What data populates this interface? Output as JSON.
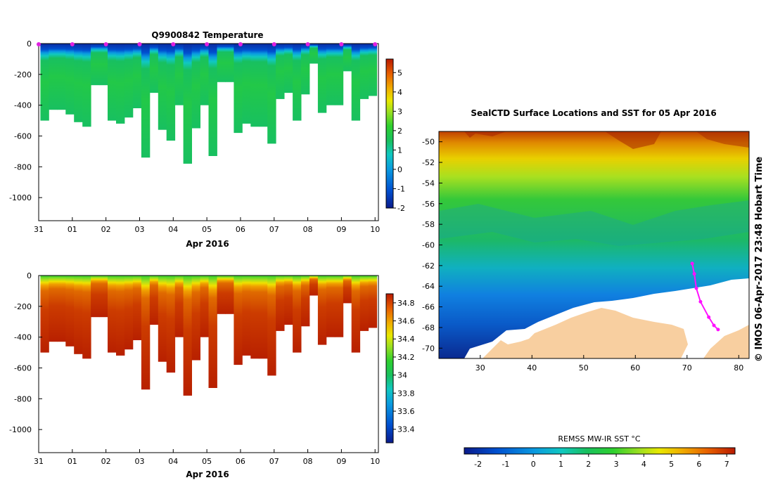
{
  "chart_data": [
    {
      "id": "temperature_section",
      "type": "heatmap",
      "title": "Q9900842  Temperature",
      "xlabel": "Apr 2016",
      "ylabel": "",
      "x_tick_labels": [
        "31",
        "01",
        "02",
        "03",
        "04",
        "05",
        "06",
        "07",
        "08",
        "09",
        "10"
      ],
      "x_ticks_days": [
        0,
        1,
        2,
        3,
        4,
        5,
        6,
        7,
        8,
        9,
        10
      ],
      "xlim_days": [
        0,
        10.1
      ],
      "y_ticks": [
        0,
        -200,
        -400,
        -600,
        -800,
        -1000
      ],
      "ylim": [
        -1150,
        0
      ],
      "profile_days": [
        0.05,
        0.3,
        0.55,
        0.8,
        1.05,
        1.3,
        1.55,
        1.8,
        2.05,
        2.3,
        2.55,
        2.8,
        3.05,
        3.3,
        3.55,
        3.8,
        4.05,
        4.3,
        4.55,
        4.8,
        5.05,
        5.3,
        5.55,
        5.8,
        6.05,
        6.3,
        6.55,
        6.8,
        7.05,
        7.3,
        7.55,
        7.8,
        8.05,
        8.3,
        8.55,
        8.8,
        9.05,
        9.3,
        9.55,
        9.8
      ],
      "profile_max_depth": [
        500,
        430,
        430,
        460,
        510,
        540,
        270,
        270,
        500,
        520,
        480,
        420,
        740,
        320,
        560,
        630,
        400,
        780,
        550,
        400,
        730,
        250,
        250,
        580,
        520,
        540,
        540,
        650,
        360,
        320,
        500,
        330,
        130,
        450,
        400,
        400,
        180,
        500,
        360,
        340
      ],
      "surface_markers_days": [
        0,
        1,
        2,
        3,
        4,
        5,
        6,
        7,
        8,
        9,
        10
      ],
      "colorbar": {
        "ticks": [
          5,
          4,
          3,
          2,
          1,
          0,
          -1,
          -2
        ],
        "range": [
          -2,
          5.7
        ],
        "colors": [
          "#0a1a8a",
          "#0050d0",
          "#0a9ae0",
          "#10c8c0",
          "#18c060",
          "#2ed02e",
          "#a0e020",
          "#e8e800",
          "#f0b000",
          "#e86000",
          "#b81a00"
        ]
      }
    },
    {
      "id": "salinity_section",
      "type": "heatmap",
      "title": "",
      "xlabel": "Apr 2016",
      "ylabel": "",
      "x_tick_labels": [
        "31",
        "01",
        "02",
        "03",
        "04",
        "05",
        "06",
        "07",
        "08",
        "09",
        "10"
      ],
      "x_ticks_days": [
        0,
        1,
        2,
        3,
        4,
        5,
        6,
        7,
        8,
        9,
        10
      ],
      "xlim_days": [
        0,
        10.1
      ],
      "y_ticks": [
        0,
        -200,
        -400,
        -600,
        -800,
        -1000
      ],
      "ylim": [
        -1150,
        0
      ],
      "profile_days": [
        0.05,
        0.3,
        0.55,
        0.8,
        1.05,
        1.3,
        1.55,
        1.8,
        2.05,
        2.3,
        2.55,
        2.8,
        3.05,
        3.3,
        3.55,
        3.8,
        4.05,
        4.3,
        4.55,
        4.8,
        5.05,
        5.3,
        5.55,
        5.8,
        6.05,
        6.3,
        6.55,
        6.8,
        7.05,
        7.3,
        7.55,
        7.8,
        8.05,
        8.3,
        8.55,
        8.8,
        9.05,
        9.3,
        9.55,
        9.8
      ],
      "profile_max_depth": [
        500,
        430,
        430,
        460,
        510,
        540,
        270,
        270,
        500,
        520,
        480,
        420,
        740,
        320,
        560,
        630,
        400,
        780,
        550,
        400,
        730,
        250,
        250,
        580,
        520,
        540,
        540,
        650,
        360,
        320,
        500,
        330,
        130,
        450,
        400,
        400,
        180,
        500,
        360,
        340
      ],
      "colorbar": {
        "ticks": [
          34.8,
          34.6,
          34.4,
          34.2,
          34,
          33.8,
          33.6,
          33.4
        ],
        "range": [
          33.25,
          34.9
        ],
        "colors": [
          "#0a1a8a",
          "#0050d0",
          "#0a9ae0",
          "#10c8c0",
          "#18c060",
          "#2ed02e",
          "#a0e020",
          "#e8e800",
          "#f0b000",
          "#e86000",
          "#b81a00"
        ]
      }
    },
    {
      "id": "sst_map",
      "type": "heatmap",
      "title": "SealCTD Surface Locations and SST for 05 Apr 2016",
      "xlabel": "",
      "ylabel": "",
      "x_ticks": [
        30,
        40,
        50,
        60,
        70,
        80
      ],
      "xlim": [
        22,
        82
      ],
      "y_tick_labels": [
        "-50",
        "-52",
        "-54",
        "-56",
        "-58",
        "-60",
        "-62",
        "-64",
        "-66",
        "-68",
        "-70"
      ],
      "y_ticks": [
        -50,
        -52,
        -54,
        -56,
        -58,
        -60,
        -62,
        -64,
        -66,
        -68,
        -70
      ],
      "ylim": [
        -71,
        -49
      ],
      "colorbar_label": "REMSS MW-IR SST °C",
      "colorbar_ticks": [
        -2,
        -1,
        0,
        1,
        2,
        3,
        4,
        5,
        6,
        7
      ],
      "colorbar_range": [
        -2.5,
        7.3
      ],
      "track": [
        [
          71.0,
          -61.8
        ],
        [
          71.4,
          -62.8
        ],
        [
          71.8,
          -64.2
        ],
        [
          72.6,
          -65.5
        ],
        [
          74.2,
          -67.0
        ],
        [
          75.2,
          -67.8
        ],
        [
          76.0,
          -68.2
        ]
      ],
      "credit": "©  IMOS 06-Apr-2017 23:48 Hobart Time"
    }
  ]
}
